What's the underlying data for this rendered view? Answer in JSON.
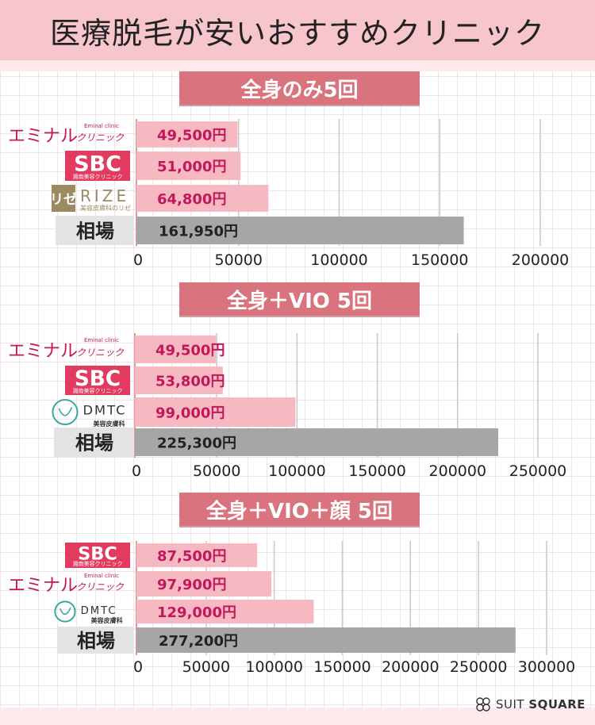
{
  "title": "医療脱毛が安いおすすめクリニック",
  "brand": {
    "name_light": "SUIT",
    "name_bold": "SQUARE",
    "icon": "clover-logo-icon"
  },
  "colors": {
    "header_bg": "#f7c6cc",
    "pill_bg": "#d9737d",
    "clinic_bar": "#f6b9c1",
    "avg_bar": "#a6a6a6",
    "price_text": "#c2185b",
    "avg_text": "#222222"
  },
  "chart_data": [
    {
      "type": "bar",
      "orientation": "horizontal",
      "title": "全身のみ5回",
      "categories": [
        "エミナルクリニック",
        "SBC湘南美容クリニック",
        "リゼ RIZE 美容皮膚科のリゼ",
        "相場"
      ],
      "values": [
        49500,
        51000,
        64800,
        161950
      ],
      "value_labels": [
        "49,500円",
        "51,000円",
        "64,800円",
        "161,950円"
      ],
      "xlim": [
        0,
        200000
      ],
      "ticks": [
        0,
        50000,
        100000,
        150000,
        200000
      ],
      "tick_labels": [
        "0",
        "50000",
        "100000",
        "150000",
        "200000"
      ],
      "legend": "none",
      "grid": true
    },
    {
      "type": "bar",
      "orientation": "horizontal",
      "title": "全身＋VIO 5回",
      "categories": [
        "エミナルクリニック",
        "SBC湘南美容クリニック",
        "DMTC美容皮膚科",
        "相場"
      ],
      "values": [
        49500,
        53800,
        99000,
        225300
      ],
      "value_labels": [
        "49,500円",
        "53,800円",
        "99,000円",
        "225,300円"
      ],
      "xlim": [
        0,
        250000
      ],
      "ticks": [
        0,
        50000,
        100000,
        150000,
        200000,
        250000
      ],
      "tick_labels": [
        "0",
        "50000",
        "100000",
        "150000",
        "200000",
        "250000"
      ],
      "legend": "none",
      "grid": true
    },
    {
      "type": "bar",
      "orientation": "horizontal",
      "title": "全身＋VIO＋顔 5回",
      "categories": [
        "SBC湘南美容クリニック",
        "エミナルクリニック",
        "DMTC美容皮膚科",
        "相場"
      ],
      "values": [
        87500,
        97900,
        129000,
        277200
      ],
      "value_labels": [
        "87,500円",
        "97,900円",
        "129,000円",
        "277,200円"
      ],
      "xlim": [
        0,
        300000
      ],
      "ticks": [
        0,
        50000,
        100000,
        150000,
        200000,
        250000,
        300000
      ],
      "tick_labels": [
        "0",
        "50000",
        "100000",
        "150000",
        "200000",
        "250000",
        "300000"
      ],
      "legend": "none",
      "grid": true
    }
  ],
  "logos": {
    "eminal": {
      "main": "エミナル",
      "sub": "クリニック",
      "tiny": "Eminal clinic"
    },
    "sbc": {
      "main": "SBC",
      "sub": "湘南美容クリニック"
    },
    "rize": {
      "mark": "リゼ",
      "main": "RIZE",
      "sub": "美容皮膚科のリゼ"
    },
    "dmtc": {
      "main": "DMTC",
      "sub": "美容皮膚科"
    },
    "average": "相場"
  }
}
